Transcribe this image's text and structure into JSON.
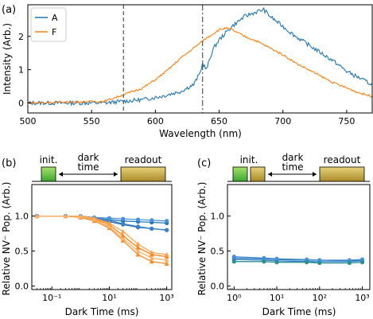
{
  "chart_data": [
    {
      "panel": "(a)",
      "type": "line",
      "xlabel": "Wavelength (nm)",
      "ylabel": "Intensity (Arb.)",
      "xlim": [
        500,
        770
      ],
      "ylim": [
        -0.3,
        2.95
      ],
      "xticks": [
        "500",
        "550",
        "600",
        "650",
        "700",
        "750"
      ],
      "yticks": [
        "0",
        "1",
        "2"
      ],
      "vlines": [
        {
          "x": 575,
          "style": "dashed"
        },
        {
          "x": 637,
          "style": "dashdot"
        }
      ],
      "legend": "top-left",
      "series": [
        {
          "name": "A",
          "color": "#1f77b4",
          "x": [
            500,
            560,
            575,
            590,
            605,
            620,
            630,
            635,
            637,
            640,
            645,
            650,
            655,
            660,
            670,
            680,
            685,
            690,
            700,
            710,
            720,
            730,
            740,
            750,
            760,
            770
          ],
          "y": [
            0.0,
            0.0,
            0.05,
            0.1,
            0.2,
            0.35,
            0.55,
            0.9,
            1.2,
            1.0,
            1.6,
            1.9,
            2.1,
            2.3,
            2.6,
            2.75,
            2.8,
            2.6,
            2.3,
            2.0,
            1.75,
            1.5,
            1.25,
            0.95,
            0.75,
            0.55
          ]
        },
        {
          "name": "F",
          "color": "#ff7f0e",
          "x": [
            500,
            560,
            575,
            590,
            600,
            610,
            620,
            630,
            640,
            650,
            655,
            660,
            670,
            680,
            690,
            700,
            710,
            720,
            730,
            740,
            750,
            760,
            770
          ],
          "y": [
            0.0,
            0.05,
            0.25,
            0.45,
            0.7,
            1.0,
            1.35,
            1.65,
            1.95,
            2.2,
            2.25,
            2.2,
            2.0,
            1.85,
            1.65,
            1.45,
            1.2,
            1.0,
            0.8,
            0.6,
            0.45,
            0.3,
            0.2
          ]
        }
      ]
    },
    {
      "panel": "(b)",
      "type": "scatter",
      "xscale": "log",
      "xlim": [
        0.02,
        1500
      ],
      "ylim": [
        -0.05,
        1.45
      ],
      "xlabel": "Dark Time (ms)",
      "ylabel": "Relative NV⁻ Pop. (Arb.)",
      "xticks": [
        {
          "v": 0.1,
          "label": "10⁻¹"
        },
        {
          "v": 10,
          "label": "10¹"
        },
        {
          "v": 1000,
          "label": "10³"
        }
      ],
      "yticks": [
        "0.0",
        "0.5",
        "1.0"
      ],
      "sequence": {
        "blocks": [
          "init.",
          "readout"
        ],
        "arrow_label_top": "dark",
        "arrow_label_bottom": "time"
      },
      "x": [
        0.03,
        0.3,
        1,
        3,
        10,
        30,
        100,
        300,
        1000
      ],
      "series": [
        {
          "color": "#1f77b4",
          "values": [
            1.0,
            1.0,
            0.99,
            0.97,
            0.95,
            0.93,
            0.92,
            0.91,
            0.9
          ]
        },
        {
          "color": "#2f6aa8",
          "values": [
            1.0,
            1.0,
            0.99,
            0.96,
            0.92,
            0.88,
            0.84,
            0.82,
            0.8
          ]
        },
        {
          "color": "#3a82c8",
          "values": [
            1.0,
            1.0,
            0.99,
            0.97,
            0.94,
            0.89,
            0.85,
            0.82,
            0.8
          ]
        },
        {
          "color": "#4a90d9",
          "values": [
            1.0,
            1.0,
            1.0,
            0.98,
            0.97,
            0.96,
            0.95,
            0.94,
            0.93
          ]
        },
        {
          "color": "#ff7f0e",
          "values": [
            1.0,
            1.0,
            0.99,
            0.96,
            0.88,
            0.72,
            0.55,
            0.45,
            0.42
          ]
        },
        {
          "color": "#f58b2a",
          "values": [
            1.0,
            1.0,
            0.98,
            0.93,
            0.83,
            0.65,
            0.45,
            0.35,
            0.32
          ]
        },
        {
          "color": "#f7a14c",
          "values": [
            1.0,
            1.0,
            1.0,
            0.97,
            0.9,
            0.78,
            0.6,
            0.48,
            0.45
          ]
        },
        {
          "color": "#ffb065",
          "values": [
            1.0,
            1.0,
            0.99,
            0.95,
            0.85,
            0.68,
            0.5,
            0.4,
            0.37
          ]
        }
      ]
    },
    {
      "panel": "(c)",
      "type": "scatter",
      "xscale": "log",
      "xlim": [
        0.7,
        1500
      ],
      "ylim": [
        -0.05,
        1.45
      ],
      "xlabel": "Dark Time (ms)",
      "ylabel": "Relative NV⁻ Pop. (Arb.)",
      "xticks": [
        {
          "v": 1,
          "label": "10⁰"
        },
        {
          "v": 10,
          "label": "10¹"
        },
        {
          "v": 100,
          "label": "10²"
        },
        {
          "v": 1000,
          "label": "10³"
        }
      ],
      "yticks": [
        "0.0",
        "0.5",
        "1.0"
      ],
      "sequence": {
        "blocks": [
          "init.",
          "readout"
        ],
        "arrow_label_top": "dark",
        "arrow_label_bottom": "time"
      },
      "x": [
        1,
        5,
        10,
        50,
        100,
        500,
        1000
      ],
      "series": [
        {
          "color": "#1f77b4",
          "values": [
            0.4,
            0.39,
            0.38,
            0.37,
            0.37,
            0.36,
            0.37
          ]
        },
        {
          "color": "#3a82c8",
          "values": [
            0.38,
            0.37,
            0.36,
            0.35,
            0.35,
            0.35,
            0.36
          ]
        },
        {
          "color": "#4a90d9",
          "values": [
            0.42,
            0.4,
            0.39,
            0.38,
            0.37,
            0.37,
            0.38
          ]
        },
        {
          "color": "#2a8f8f",
          "values": [
            0.35,
            0.35,
            0.34,
            0.34,
            0.33,
            0.33,
            0.34
          ]
        }
      ]
    }
  ]
}
